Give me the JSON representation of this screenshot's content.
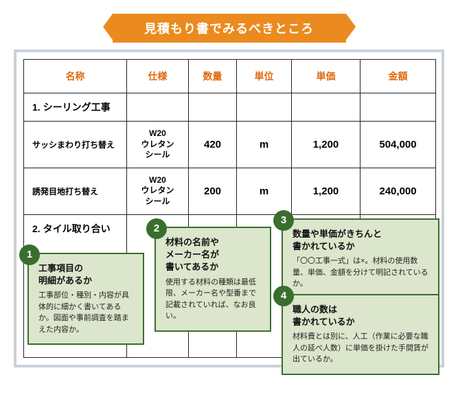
{
  "banner": "見積もり書でみるべきところ",
  "columns": [
    "名称",
    "仕様",
    "数量",
    "単位",
    "単価",
    "金額"
  ],
  "sections": {
    "s1": "1. シーリング工事",
    "s2": "2. タイル取り合い"
  },
  "rows": [
    {
      "name": "サッシまわり打ち替え",
      "spec": "W20\nウレタン\nシール",
      "qty": "420",
      "unit": "m",
      "price": "1,200",
      "amount": "504,000"
    },
    {
      "name": "誘発目地打ち替え",
      "spec": "W20\nウレタン\nシール",
      "qty": "200",
      "unit": "m",
      "price": "1,200",
      "amount": "240,000"
    }
  ],
  "callouts": [
    {
      "n": "1",
      "title": "工事項目の\n明細があるか",
      "body": "工事部位・種別・内容が具体的に細かく書いてあるか。図面や事前調査を踏まえた内容か。"
    },
    {
      "n": "2",
      "title": "材料の名前や\nメーカー名が\n書いてあるか",
      "body": "使用する材料の種類は最低限、メーカー名や型番まで記載されていれば、なお良い。"
    },
    {
      "n": "3",
      "title": "数量や単価がきちんと\n書かれているか",
      "body": "「〇〇工事一式」は×。材料の使用数量、単価、金額を分けて明記されているか。"
    },
    {
      "n": "4",
      "title": "職人の数は\n書かれているか",
      "body": "材料費とは別に、人工（作業に必要な職人の延べ人数）に単価を掛けた手間賃が出ているか。"
    }
  ],
  "colors": {
    "accent": "#eb8a1e",
    "frame": "#c9d1d9",
    "calloutBg": "#dbe6cc",
    "calloutBorder": "#3a6e2d"
  }
}
